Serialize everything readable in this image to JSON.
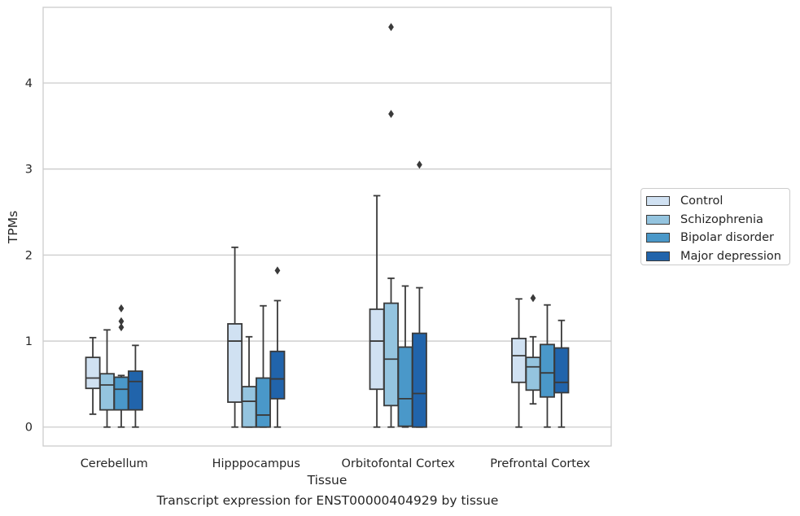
{
  "chart_data": {
    "type": "box",
    "xlabel": "Tissue",
    "ylabel": "TPMs",
    "caption": "Transcript expression for ENST00000404929 by tissue",
    "ylim": [
      -0.22,
      4.88
    ],
    "yticks": [
      0,
      1,
      2,
      3,
      4
    ],
    "grid": "horizontal",
    "legend_position": "right",
    "categories": [
      "Cerebellum",
      "Hipppocampus",
      "Orbitofontal Cortex",
      "Prefrontal Cortex"
    ],
    "series": [
      {
        "name": "Control",
        "color": "#d0e1f2",
        "boxes": [
          {
            "whisker_low": 0.15,
            "q1": 0.45,
            "median": 0.57,
            "q3": 0.81,
            "whisker_high": 1.04,
            "outliers": []
          },
          {
            "whisker_low": 0.0,
            "q1": 0.29,
            "median": 1.0,
            "q3": 1.2,
            "whisker_high": 2.09,
            "outliers": []
          },
          {
            "whisker_low": 0.0,
            "q1": 0.44,
            "median": 1.0,
            "q3": 1.37,
            "whisker_high": 2.69,
            "outliers": []
          },
          {
            "whisker_low": 0.0,
            "q1": 0.52,
            "median": 0.83,
            "q3": 1.03,
            "whisker_high": 1.49,
            "outliers": []
          }
        ]
      },
      {
        "name": "Schizophrenia",
        "color": "#94c4df",
        "boxes": [
          {
            "whisker_low": 0.0,
            "q1": 0.2,
            "median": 0.49,
            "q3": 0.62,
            "whisker_high": 1.13,
            "outliers": []
          },
          {
            "whisker_low": 0.0,
            "q1": 0.0,
            "median": 0.3,
            "q3": 0.47,
            "whisker_high": 1.05,
            "outliers": []
          },
          {
            "whisker_low": 0.0,
            "q1": 0.25,
            "median": 0.79,
            "q3": 1.44,
            "whisker_high": 1.73,
            "outliers": [
              3.64,
              4.65
            ]
          },
          {
            "whisker_low": 0.27,
            "q1": 0.43,
            "median": 0.7,
            "q3": 0.81,
            "whisker_high": 1.05,
            "outliers": [
              1.5
            ]
          }
        ]
      },
      {
        "name": "Bipolar disorder",
        "color": "#4a98c9",
        "boxes": [
          {
            "whisker_low": 0.0,
            "q1": 0.2,
            "median": 0.44,
            "q3": 0.58,
            "whisker_high": 0.6,
            "outliers": [
              1.16,
              1.23,
              1.38
            ]
          },
          {
            "whisker_low": 0.0,
            "q1": 0.0,
            "median": 0.14,
            "q3": 0.57,
            "whisker_high": 1.41,
            "outliers": []
          },
          {
            "whisker_low": 0.0,
            "q1": 0.01,
            "median": 0.33,
            "q3": 0.93,
            "whisker_high": 1.64,
            "outliers": []
          },
          {
            "whisker_low": 0.0,
            "q1": 0.35,
            "median": 0.63,
            "q3": 0.96,
            "whisker_high": 1.42,
            "outliers": []
          }
        ]
      },
      {
        "name": "Major depression",
        "color": "#2164ab",
        "boxes": [
          {
            "whisker_low": 0.0,
            "q1": 0.2,
            "median": 0.53,
            "q3": 0.65,
            "whisker_high": 0.95,
            "outliers": []
          },
          {
            "whisker_low": 0.0,
            "q1": 0.33,
            "median": 0.56,
            "q3": 0.88,
            "whisker_high": 1.47,
            "outliers": [
              1.82
            ]
          },
          {
            "whisker_low": 0.0,
            "q1": 0.0,
            "median": 0.39,
            "q3": 1.09,
            "whisker_high": 1.62,
            "outliers": [
              3.05
            ]
          },
          {
            "whisker_low": 0.0,
            "q1": 0.4,
            "median": 0.52,
            "q3": 0.92,
            "whisker_high": 1.24,
            "outliers": []
          }
        ]
      }
    ]
  }
}
